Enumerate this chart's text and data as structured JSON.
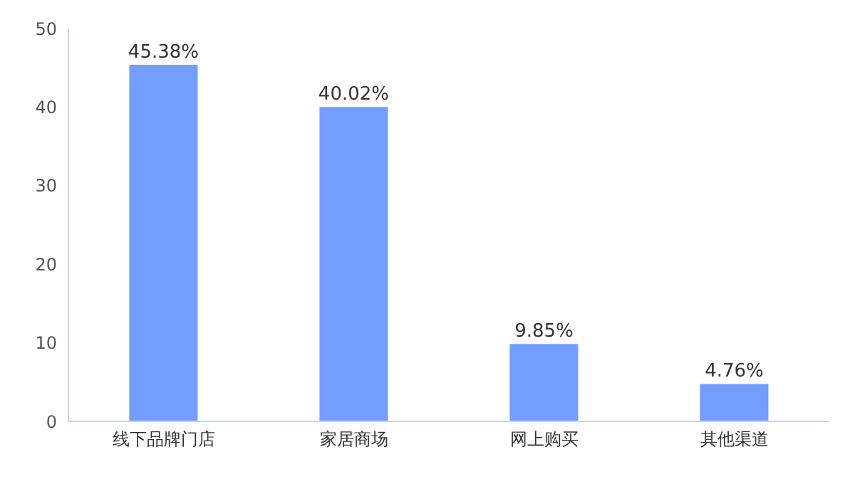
{
  "chart_data": {
    "type": "bar",
    "categories": [
      "线下品牌门店",
      "家居商场",
      "网上购买",
      "其他渠道"
    ],
    "values": [
      45.38,
      40.02,
      9.85,
      4.76
    ],
    "value_labels": [
      "45.38%",
      "40.02%",
      "9.85%",
      "4.76%"
    ],
    "color": "#739eff",
    "ylim": [
      0,
      50
    ],
    "yticks": [
      0,
      10,
      20,
      30,
      40,
      50
    ],
    "grid": false,
    "legend": false
  }
}
